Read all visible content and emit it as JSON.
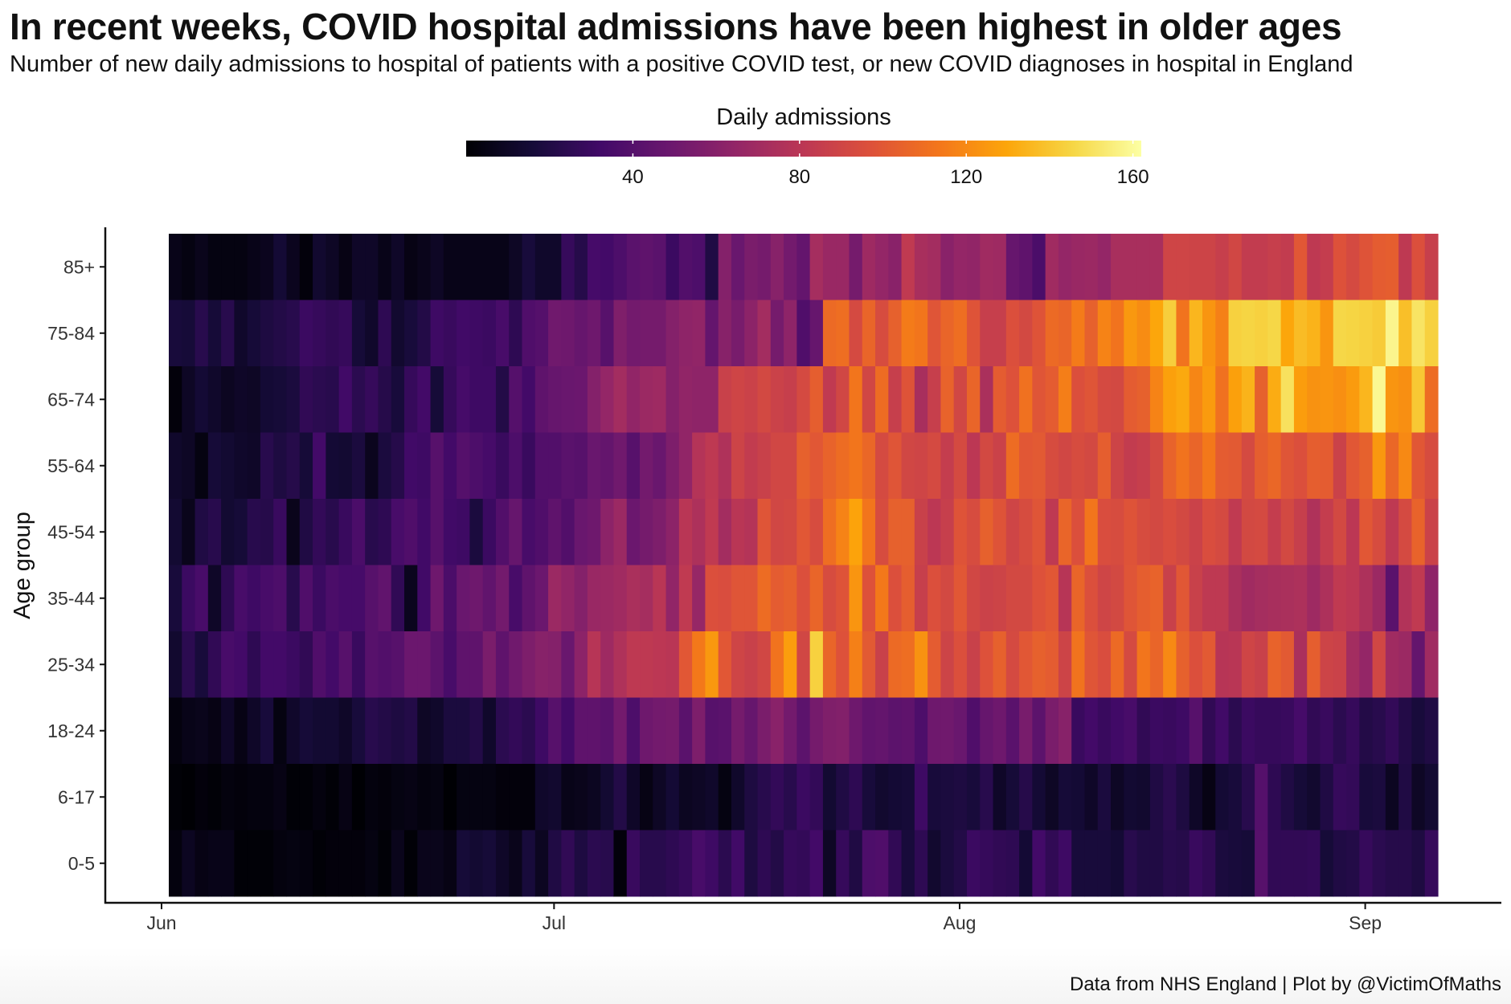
{
  "title": "In recent weeks, COVID hospital admissions have been highest in older ages",
  "subtitle": "Number of new daily admissions to hospital of patients with a positive COVID test, or new COVID diagnoses in hospital in England",
  "caption": "Data from NHS England | Plot by @VictimOfMaths",
  "chart_data": {
    "type": "heatmap",
    "colormap": "inferno",
    "legend": {
      "title": "Daily admissions",
      "placement": "top",
      "range": [
        0,
        162
      ],
      "ticks": [
        40,
        80,
        120,
        160
      ]
    },
    "xlabel": "",
    "ylabel": "Age group",
    "x_tick_labels": [
      "Jun",
      "Jul",
      "Aug",
      "Sep"
    ],
    "x_range": [
      "2021-06-01",
      "2021-09-06"
    ],
    "dates": [
      "2021-06-01",
      "2021-06-02",
      "2021-06-03",
      "2021-06-04",
      "2021-06-05",
      "2021-06-06",
      "2021-06-07",
      "2021-06-08",
      "2021-06-09",
      "2021-06-10",
      "2021-06-11",
      "2021-06-12",
      "2021-06-13",
      "2021-06-14",
      "2021-06-15",
      "2021-06-16",
      "2021-06-17",
      "2021-06-18",
      "2021-06-19",
      "2021-06-20",
      "2021-06-21",
      "2021-06-22",
      "2021-06-23",
      "2021-06-24",
      "2021-06-25",
      "2021-06-26",
      "2021-06-27",
      "2021-06-28",
      "2021-06-29",
      "2021-06-30",
      "2021-07-01",
      "2021-07-02",
      "2021-07-03",
      "2021-07-04",
      "2021-07-05",
      "2021-07-06",
      "2021-07-07",
      "2021-07-08",
      "2021-07-09",
      "2021-07-10",
      "2021-07-11",
      "2021-07-12",
      "2021-07-13",
      "2021-07-14",
      "2021-07-15",
      "2021-07-16",
      "2021-07-17",
      "2021-07-18",
      "2021-07-19",
      "2021-07-20",
      "2021-07-21",
      "2021-07-22",
      "2021-07-23",
      "2021-07-24",
      "2021-07-25",
      "2021-07-26",
      "2021-07-27",
      "2021-07-28",
      "2021-07-29",
      "2021-07-30",
      "2021-07-31",
      "2021-08-01",
      "2021-08-02",
      "2021-08-03",
      "2021-08-04",
      "2021-08-05",
      "2021-08-06",
      "2021-08-07",
      "2021-08-08",
      "2021-08-09",
      "2021-08-10",
      "2021-08-11",
      "2021-08-12",
      "2021-08-13",
      "2021-08-14",
      "2021-08-15",
      "2021-08-16",
      "2021-08-17",
      "2021-08-18",
      "2021-08-19",
      "2021-08-20",
      "2021-08-21",
      "2021-08-22",
      "2021-08-23",
      "2021-08-24",
      "2021-08-25",
      "2021-08-26",
      "2021-08-27",
      "2021-08-28",
      "2021-08-29",
      "2021-08-30",
      "2021-08-31",
      "2021-09-01",
      "2021-09-02",
      "2021-09-03",
      "2021-09-04",
      "2021-09-05"
    ],
    "age_groups": [
      "85+",
      "75-84",
      "65-74",
      "55-64",
      "45-54",
      "35-44",
      "25-34",
      "18-24",
      "6-17",
      "0-5"
    ],
    "values": [
      [
        6,
        4,
        7,
        4,
        4,
        4,
        6,
        8,
        15,
        8,
        2,
        13,
        10,
        5,
        11,
        11,
        6,
        11,
        5,
        7,
        10,
        6,
        6,
        6,
        6,
        6,
        10,
        17,
        12,
        12,
        28,
        22,
        34,
        33,
        37,
        42,
        44,
        42,
        30,
        39,
        37,
        20,
        59,
        48,
        55,
        53,
        60,
        52,
        46,
        72,
        67,
        67,
        53,
        69,
        65,
        61,
        83,
        73,
        71,
        61,
        65,
        64,
        70,
        69,
        47,
        44,
        36,
        70,
        65,
        67,
        68,
        65,
        73,
        73,
        73,
        73,
        90,
        90,
        89,
        89,
        86,
        91,
        84,
        84,
        86,
        84,
        100,
        82,
        85,
        97,
        93,
        98,
        102,
        103,
        82,
        96,
        86
      ],
      [
        17,
        16,
        23,
        16,
        23,
        12,
        16,
        19,
        21,
        23,
        30,
        28,
        26,
        28,
        16,
        12,
        25,
        13,
        17,
        21,
        31,
        29,
        32,
        31,
        30,
        35,
        25,
        38,
        40,
        51,
        50,
        47,
        50,
        41,
        57,
        52,
        53,
        53,
        59,
        63,
        64,
        46,
        60,
        54,
        62,
        71,
        53,
        63,
        38,
        47,
        108,
        110,
        93,
        106,
        94,
        104,
        115,
        113,
        99,
        106,
        110,
        98,
        86,
        86,
        96,
        92,
        98,
        108,
        106,
        115,
        104,
        118,
        112,
        125,
        121,
        130,
        143,
        112,
        135,
        124,
        117,
        144,
        145,
        144,
        146,
        130,
        137,
        134,
        124,
        146,
        145,
        144,
        142,
        158,
        138,
        151,
        144
      ],
      [
        2,
        10,
        15,
        12,
        9,
        11,
        10,
        15,
        16,
        18,
        26,
        24,
        23,
        32,
        24,
        28,
        22,
        17,
        28,
        33,
        16,
        28,
        34,
        31,
        31,
        21,
        40,
        33,
        44,
        47,
        48,
        49,
        59,
        65,
        71,
        64,
        68,
        69,
        59,
        64,
        63,
        63,
        87,
        90,
        88,
        92,
        88,
        86,
        93,
        103,
        83,
        91,
        113,
        91,
        109,
        86,
        98,
        73,
        86,
        105,
        91,
        106,
        74,
        102,
        97,
        111,
        99,
        102,
        116,
        96,
        99,
        93,
        92,
        102,
        104,
        118,
        128,
        131,
        119,
        126,
        111,
        128,
        134,
        104,
        132,
        150,
        127,
        123,
        124,
        122,
        126,
        135,
        159,
        124,
        122,
        141,
        109
      ],
      [
        12,
        10,
        4,
        16,
        14,
        12,
        11,
        23,
        19,
        22,
        16,
        33,
        15,
        14,
        18,
        8,
        18,
        22,
        32,
        31,
        41,
        33,
        40,
        37,
        34,
        29,
        37,
        29,
        39,
        39,
        42,
        41,
        48,
        46,
        51,
        41,
        52,
        48,
        56,
        64,
        78,
        82,
        76,
        89,
        84,
        87,
        91,
        91,
        104,
        100,
        105,
        109,
        113,
        107,
        93,
        99,
        91,
        90,
        93,
        85,
        93,
        81,
        92,
        88,
        109,
        100,
        101,
        94,
        91,
        94,
        92,
        103,
        89,
        84,
        86,
        92,
        105,
        112,
        106,
        114,
        102,
        101,
        93,
        103,
        107,
        99,
        96,
        103,
        102,
        88,
        100,
        104,
        125,
        107,
        120,
        100,
        94
      ],
      [
        14,
        7,
        20,
        23,
        14,
        16,
        23,
        22,
        29,
        7,
        20,
        27,
        23,
        29,
        36,
        23,
        25,
        35,
        38,
        32,
        41,
        32,
        31,
        18,
        30,
        39,
        47,
        35,
        38,
        44,
        39,
        48,
        50,
        62,
        68,
        49,
        53,
        56,
        62,
        80,
        75,
        83,
        71,
        80,
        78,
        99,
        91,
        92,
        100,
        94,
        110,
        118,
        129,
        113,
        94,
        104,
        104,
        87,
        81,
        86,
        98,
        94,
        104,
        98,
        90,
        94,
        99,
        82,
        106,
        96,
        113,
        95,
        94,
        98,
        94,
        92,
        95,
        92,
        88,
        95,
        93,
        83,
        92,
        93,
        85,
        92,
        86,
        76,
        85,
        92,
        81,
        100,
        94,
        82,
        93,
        105,
        88
      ],
      [
        17,
        30,
        35,
        11,
        25,
        35,
        31,
        35,
        37,
        23,
        38,
        30,
        36,
        34,
        34,
        41,
        45,
        26,
        8,
        32,
        50,
        36,
        48,
        50,
        45,
        52,
        35,
        44,
        49,
        68,
        64,
        59,
        67,
        68,
        70,
        74,
        72,
        80,
        64,
        83,
        66,
        96,
        95,
        99,
        99,
        109,
        102,
        104,
        96,
        106,
        94,
        98,
        124,
        97,
        114,
        96,
        103,
        86,
        96,
        92,
        100,
        91,
        88,
        89,
        92,
        92,
        97,
        100,
        79,
        106,
        96,
        90,
        92,
        99,
        103,
        105,
        87,
        100,
        87,
        82,
        82,
        74,
        70,
        72,
        73,
        74,
        75,
        69,
        75,
        83,
        81,
        75,
        68,
        42,
        77,
        83,
        63
      ],
      [
        13,
        24,
        17,
        26,
        35,
        33,
        25,
        33,
        33,
        30,
        26,
        38,
        33,
        41,
        29,
        41,
        39,
        41,
        49,
        49,
        43,
        35,
        44,
        44,
        55,
        44,
        51,
        56,
        60,
        59,
        48,
        62,
        79,
        69,
        76,
        82,
        82,
        81,
        80,
        100,
        114,
        125,
        100,
        90,
        87,
        91,
        112,
        127,
        91,
        144,
        106,
        97,
        117,
        101,
        87,
        108,
        110,
        123,
        102,
        89,
        96,
        87,
        97,
        104,
        93,
        100,
        104,
        102,
        89,
        112,
        99,
        95,
        108,
        93,
        113,
        106,
        120,
        104,
        96,
        101,
        79,
        80,
        90,
        87,
        105,
        101,
        74,
        103,
        89,
        88,
        71,
        65,
        91,
        70,
        68,
        46,
        70
      ],
      [
        3,
        6,
        7,
        5,
        11,
        5,
        11,
        17,
        4,
        12,
        16,
        14,
        14,
        11,
        17,
        23,
        21,
        19,
        21,
        10,
        12,
        18,
        18,
        21,
        12,
        24,
        27,
        24,
        31,
        41,
        33,
        44,
        44,
        42,
        52,
        37,
        50,
        52,
        53,
        42,
        56,
        41,
        42,
        53,
        47,
        55,
        61,
        52,
        43,
        53,
        57,
        58,
        50,
        45,
        46,
        43,
        44,
        37,
        50,
        51,
        48,
        38,
        47,
        50,
        42,
        54,
        43,
        55,
        60,
        29,
        33,
        29,
        32,
        35,
        26,
        30,
        29,
        31,
        41,
        26,
        32,
        24,
        30,
        28,
        28,
        29,
        34,
        26,
        29,
        24,
        28,
        21,
        23,
        27,
        21,
        17,
        20
      ],
      [
        1,
        0,
        2,
        1,
        3,
        2,
        3,
        3,
        5,
        1,
        1,
        3,
        1,
        5,
        0,
        3,
        2,
        4,
        5,
        3,
        4,
        0,
        4,
        4,
        4,
        2,
        2,
        2,
        12,
        13,
        6,
        7,
        9,
        14,
        21,
        11,
        5,
        10,
        15,
        9,
        10,
        12,
        4,
        12,
        19,
        23,
        27,
        23,
        30,
        27,
        14,
        20,
        25,
        17,
        13,
        15,
        16,
        31,
        17,
        18,
        19,
        17,
        23,
        11,
        16,
        22,
        15,
        10,
        16,
        15,
        11,
        18,
        10,
        14,
        13,
        20,
        24,
        19,
        11,
        5,
        15,
        17,
        23,
        40,
        25,
        20,
        16,
        13,
        20,
        28,
        27,
        17,
        18,
        9,
        20,
        10,
        14
      ],
      [
        3,
        9,
        5,
        6,
        6,
        1,
        1,
        1,
        3,
        4,
        3,
        1,
        2,
        2,
        2,
        4,
        1,
        7,
        1,
        7,
        7,
        5,
        16,
        14,
        16,
        11,
        7,
        17,
        9,
        20,
        26,
        19,
        24,
        23,
        2,
        29,
        23,
        23,
        25,
        28,
        35,
        31,
        24,
        32,
        19,
        25,
        21,
        28,
        27,
        33,
        10,
        28,
        20,
        37,
        38,
        26,
        17,
        25,
        13,
        18,
        21,
        30,
        28,
        26,
        25,
        15,
        33,
        26,
        31,
        17,
        17,
        17,
        15,
        23,
        20,
        20,
        23,
        22,
        29,
        26,
        18,
        17,
        16,
        41,
        26,
        26,
        26,
        27,
        16,
        20,
        21,
        28,
        24,
        22,
        22,
        19,
        28
      ]
    ]
  }
}
